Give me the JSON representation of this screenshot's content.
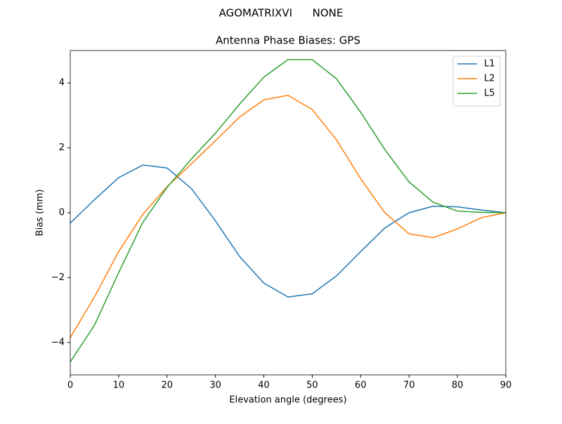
{
  "chart_data": {
    "type": "line",
    "suptitle": "AGOMATRIXVI      NONE",
    "title": "Antenna Phase Biases: GPS",
    "x_label": "Elevation angle (degrees)",
    "y_label": "Bias (mm)",
    "x": [
      0,
      5,
      10,
      15,
      20,
      25,
      30,
      35,
      40,
      45,
      50,
      55,
      60,
      65,
      70,
      75,
      80,
      85,
      90
    ],
    "series": [
      {
        "name": "L1",
        "color": "#1f77b4",
        "values": [
          -0.32,
          0.4,
          1.08,
          1.47,
          1.38,
          0.75,
          -0.25,
          -1.35,
          -2.17,
          -2.6,
          -2.5,
          -1.95,
          -1.2,
          -0.47,
          0.0,
          0.2,
          0.18,
          0.08,
          0
        ]
      },
      {
        "name": "L2",
        "color": "#ff7f0e",
        "values": [
          -3.85,
          -2.6,
          -1.2,
          -0.05,
          0.8,
          1.5,
          2.22,
          2.95,
          3.48,
          3.62,
          3.18,
          2.25,
          1.05,
          0.0,
          -0.65,
          -0.77,
          -0.5,
          -0.15,
          0
        ]
      },
      {
        "name": "L5",
        "color": "#2ca02c",
        "values": [
          -4.6,
          -3.47,
          -1.85,
          -0.3,
          0.78,
          1.65,
          2.45,
          3.35,
          4.18,
          4.72,
          4.72,
          4.13,
          3.1,
          1.95,
          0.95,
          0.32,
          0.05,
          0.01,
          0
        ]
      }
    ],
    "xlim": [
      0,
      90
    ],
    "xticks": [
      0,
      10,
      20,
      30,
      40,
      50,
      60,
      70,
      80,
      90
    ],
    "ylim": [
      -5,
      5
    ],
    "yticks": [
      {
        "value": -4,
        "label": "−4"
      },
      {
        "value": -2,
        "label": "−2"
      },
      0,
      2,
      4
    ],
    "grid": false,
    "legend": "upper right"
  }
}
